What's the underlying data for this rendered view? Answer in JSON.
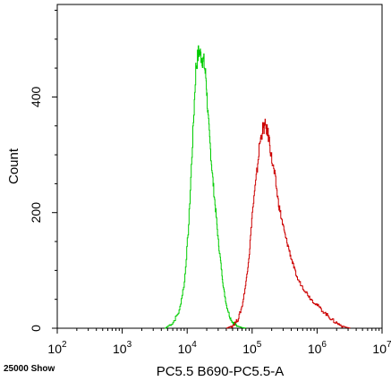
{
  "chart_data": {
    "type": "line",
    "title": "",
    "xlabel": "PC5.5 B690-PC5.5-A",
    "ylabel": "Count",
    "footer_note": "25000 Show",
    "x_scale": "log",
    "xlim": [
      100,
      10000000
    ],
    "ylim": [
      0,
      560
    ],
    "x_ticks": [
      {
        "value": 100,
        "base": "10",
        "exp": "2"
      },
      {
        "value": 1000,
        "base": "10",
        "exp": "3"
      },
      {
        "value": 10000,
        "base": "10",
        "exp": "4"
      },
      {
        "value": 100000,
        "base": "10",
        "exp": "5"
      },
      {
        "value": 1000000,
        "base": "10",
        "exp": "6"
      },
      {
        "value": 10000000,
        "base": "10",
        "exp": "7"
      }
    ],
    "y_ticks": [
      {
        "value": 0,
        "label": "0"
      },
      {
        "value": 200,
        "label": "200"
      },
      {
        "value": 400,
        "label": "400"
      }
    ],
    "grid": false,
    "legend": "none",
    "series": [
      {
        "color": "#00cc00",
        "x": [
          4500,
          6000,
          7500,
          9000,
          10500,
          12000,
          13500,
          15000,
          16500,
          18000,
          19500,
          21000,
          23000,
          25000,
          27500,
          30000,
          33000,
          36000,
          40000,
          45000,
          50000,
          56000,
          62000,
          70000,
          80000
        ],
        "values": [
          0,
          10,
          30,
          80,
          180,
          320,
          450,
          480,
          470,
          460,
          430,
          360,
          300,
          250,
          200,
          150,
          110,
          70,
          40,
          20,
          10,
          5,
          3,
          1,
          0
        ]
      },
      {
        "color": "#cc0000",
        "x": [
          40000,
          50000,
          60000,
          70000,
          80000,
          90000,
          100000,
          115000,
          130000,
          145000,
          160000,
          180000,
          200000,
          225000,
          250000,
          280000,
          320000,
          360000,
          400000,
          450000,
          500000,
          600000,
          700000,
          800000,
          1000000,
          1200000,
          1500000,
          1800000,
          2200000,
          2700000,
          3200000
        ],
        "values": [
          0,
          5,
          15,
          40,
          80,
          130,
          200,
          260,
          320,
          345,
          350,
          330,
          290,
          260,
          220,
          190,
          160,
          140,
          120,
          100,
          85,
          70,
          60,
          50,
          40,
          30,
          20,
          12,
          6,
          2,
          0
        ]
      }
    ]
  }
}
